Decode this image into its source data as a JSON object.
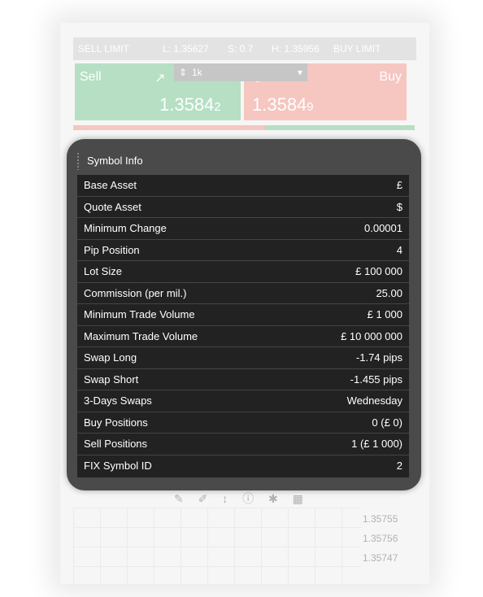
{
  "background_widget": {
    "order_type_left": "SELL LIMIT",
    "low": "L: 1.35627",
    "spread": "S: 0.7",
    "high": "H: 1.35956",
    "order_type_right": "BUY LIMIT",
    "sell_label": "Sell",
    "buy_label": "Buy",
    "volume": "1k",
    "sell_price_main": "1.3584",
    "sell_price_pip": "2",
    "buy_price_main": "1.3584",
    "buy_price_pip": "9",
    "mini_prices": [
      "1.35755",
      "1.35756",
      "1.35747"
    ]
  },
  "symbol_info": {
    "title": "Symbol Info",
    "rows": [
      {
        "label": "Base Asset",
        "value": "£"
      },
      {
        "label": "Quote Asset",
        "value": "$"
      },
      {
        "label": "Minimum Change",
        "value": "0.00001"
      },
      {
        "label": "Pip Position",
        "value": "4"
      },
      {
        "label": "Lot Size",
        "value": "£ 100 000"
      },
      {
        "label": "Commission (per mil.)",
        "value": "25.00"
      },
      {
        "label": "Minimum Trade Volume",
        "value": "£ 1 000"
      },
      {
        "label": "Maximum Trade Volume",
        "value": "£ 10 000 000"
      },
      {
        "label": "Swap Long",
        "value": "-1.74 pips"
      },
      {
        "label": "Swap Short",
        "value": "-1.455 pips"
      },
      {
        "label": "3-Days Swaps",
        "value": "Wednesday"
      },
      {
        "label": "Buy Positions",
        "value": "0 (£ 0)"
      },
      {
        "label": "Sell Positions",
        "value": "1 (£ 1 000)"
      },
      {
        "label": "FIX Symbol ID",
        "value": "2"
      }
    ]
  },
  "colors": {
    "panel_bg": "#4a4a4a",
    "table_bg": "#222222",
    "sell": "#6fc08a",
    "buy": "#ef8f84"
  }
}
